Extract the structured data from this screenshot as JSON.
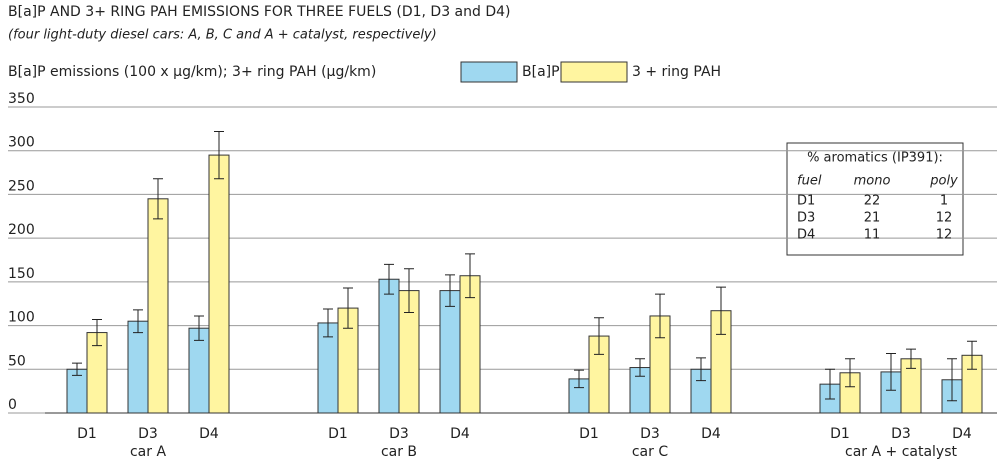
{
  "chart_data": {
    "type": "bar",
    "title": "B[a]P AND 3+ RING PAH EMISSIONS FOR THREE FUELS (D1, D3 and D4)",
    "subtitle": "(four light-duty diesel cars: A, B, C and A + catalyst, respectively)",
    "y_label": "B[a]P emissions (100 x µg/km); 3+ ring PAH (µg/km)",
    "categories": [
      "D1",
      "D3",
      "D4",
      "D1",
      "D3",
      "D4",
      "D1",
      "D3",
      "D4",
      "D1",
      "D3",
      "D4"
    ],
    "groups": [
      "car A",
      "car B",
      "car C",
      "car A + catalyst"
    ],
    "series": [
      {
        "name": "B[a]P",
        "color": "#9fd8f0",
        "values": [
          50,
          105,
          97,
          103,
          153,
          140,
          39,
          52,
          50,
          33,
          47,
          38
        ],
        "errors": [
          7,
          13,
          14,
          16,
          17,
          18,
          10,
          10,
          13,
          17,
          21,
          24
        ]
      },
      {
        "name": "3 + ring PAH",
        "color": "#fff5a0",
        "values": [
          92,
          245,
          295,
          120,
          140,
          157,
          88,
          111,
          117,
          46,
          62,
          66
        ],
        "errors": [
          15,
          23,
          27,
          23,
          25,
          25,
          21,
          25,
          27,
          16,
          11,
          16
        ]
      }
    ],
    "ylim": [
      0,
      350
    ],
    "yticks": [
      0,
      50,
      100,
      150,
      200,
      250,
      300,
      350
    ],
    "grid": true,
    "inset_table": {
      "title": "% aromatics (IP391):",
      "columns": [
        "fuel",
        "mono",
        "poly"
      ],
      "rows": [
        [
          "D1",
          22,
          1
        ],
        [
          "D3",
          21,
          12
        ],
        [
          "D4",
          11,
          12
        ]
      ]
    }
  }
}
